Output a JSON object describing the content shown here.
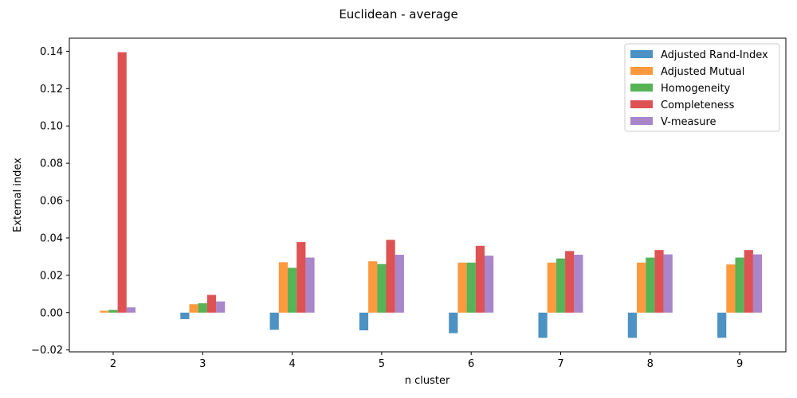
{
  "chart_data": {
    "type": "bar",
    "title": "Euclidean - average",
    "xlabel": "n cluster",
    "ylabel": "External index",
    "categories": [
      "2",
      "3",
      "4",
      "5",
      "6",
      "7",
      "8",
      "9"
    ],
    "ylim": [
      -0.021,
      0.147
    ],
    "yticks": [
      -0.02,
      0.0,
      0.02,
      0.04,
      0.06,
      0.08,
      0.1,
      0.12,
      0.14
    ],
    "ytick_labels": [
      "−0.02",
      "0.00",
      "0.02",
      "0.04",
      "0.06",
      "0.08",
      "0.10",
      "0.12",
      "0.14"
    ],
    "legend_position": "top-right",
    "grid": false,
    "series": [
      {
        "name": "Adjusted Rand-Index",
        "color": "#1f77b4",
        "values": [
          0.0,
          -0.0035,
          -0.0092,
          -0.0095,
          -0.011,
          -0.0135,
          -0.0135,
          -0.0135
        ]
      },
      {
        "name": "Adjusted Mutual",
        "color": "#ff7f0e",
        "values": [
          0.001,
          0.0045,
          0.027,
          0.0275,
          0.0268,
          0.0268,
          0.0268,
          0.0258
        ]
      },
      {
        "name": "Homogeneity",
        "color": "#2ca02c",
        "values": [
          0.0015,
          0.005,
          0.024,
          0.026,
          0.0268,
          0.029,
          0.0295,
          0.0295
        ]
      },
      {
        "name": "Completeness",
        "color": "#d62728",
        "values": [
          0.1395,
          0.0095,
          0.0378,
          0.039,
          0.0358,
          0.033,
          0.0335,
          0.0335
        ]
      },
      {
        "name": "V-measure",
        "color": "#9467bd",
        "values": [
          0.0028,
          0.006,
          0.0295,
          0.031,
          0.0305,
          0.031,
          0.0312,
          0.0312
        ]
      }
    ],
    "bar_opacity": 0.8
  }
}
